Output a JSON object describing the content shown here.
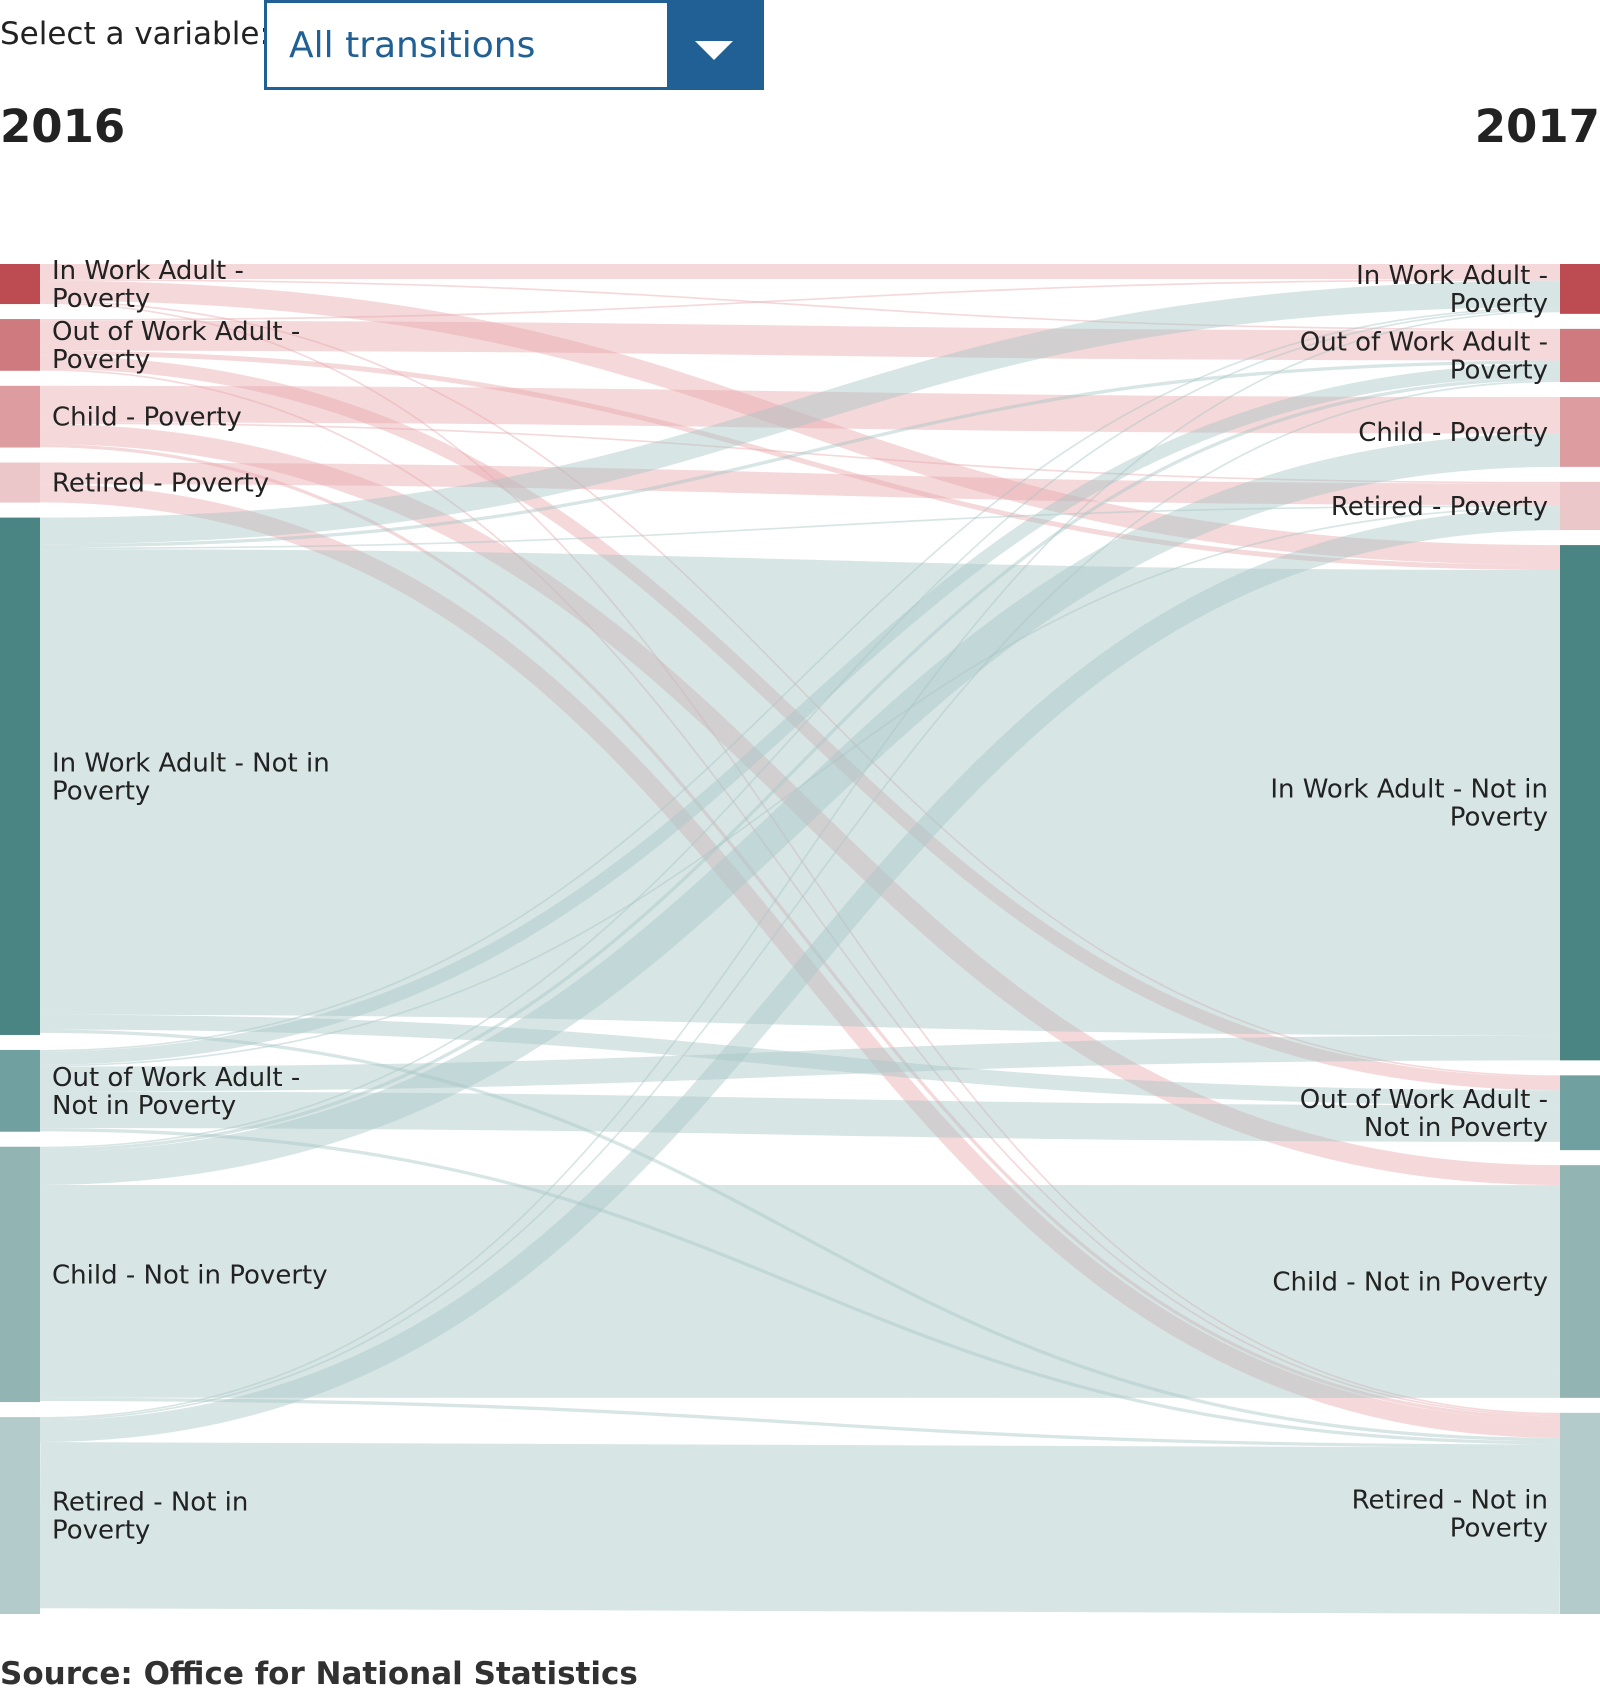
{
  "control": {
    "label": "Select a variable:",
    "selected": "All transitions"
  },
  "years": {
    "left": "2016",
    "right": "2017"
  },
  "colors": {
    "in_work_poverty": "#bd4c52",
    "out_of_work_poverty": "#cf7a7e",
    "child_poverty": "#dc9ca0",
    "retired_poverty": "#ebc7c9",
    "in_work_not_poverty": "#4a8584",
    "out_of_work_not_poverty": "#70a09f",
    "child_not_poverty": "#92b5b4",
    "retired_not_poverty": "#b3cccb",
    "flow_poverty": "#e8a9ad",
    "flow_not_poverty": "#a9c6c6"
  },
  "chart_data": {
    "type": "sankey",
    "title": "",
    "nodes": [
      {
        "name": "In Work Adult - Poverty",
        "group": "poverty"
      },
      {
        "name": "Out of Work Adult - Poverty",
        "group": "poverty"
      },
      {
        "name": "Child - Poverty",
        "group": "poverty"
      },
      {
        "name": "Retired - Poverty",
        "group": "poverty"
      },
      {
        "name": "In Work Adult - Not in Poverty",
        "group": "not_poverty"
      },
      {
        "name": "Out of Work Adult - Not in Poverty",
        "group": "not_poverty"
      },
      {
        "name": "Child - Not in Poverty",
        "group": "not_poverty"
      },
      {
        "name": "Retired - Not in Poverty",
        "group": "not_poverty"
      }
    ],
    "totals_2016": [
      2.4,
      3.1,
      3.7,
      2.4,
      31.0,
      4.9,
      15.3,
      11.8
    ],
    "totals_2017": [
      3.0,
      3.2,
      4.2,
      2.9,
      31.0,
      4.5,
      14.0,
      12.1
    ],
    "flows": [
      {
        "from": 0,
        "to": 0,
        "value": 0.9
      },
      {
        "from": 0,
        "to": 1,
        "value": 0.1
      },
      {
        "from": 0,
        "to": 4,
        "value": 1.2
      },
      {
        "from": 0,
        "to": 5,
        "value": 0.1
      },
      {
        "from": 0,
        "to": 7,
        "value": 0.1
      },
      {
        "from": 1,
        "to": 0,
        "value": 0.1
      },
      {
        "from": 1,
        "to": 1,
        "value": 1.8
      },
      {
        "from": 1,
        "to": 4,
        "value": 0.3
      },
      {
        "from": 1,
        "to": 5,
        "value": 0.8
      },
      {
        "from": 1,
        "to": 7,
        "value": 0.1
      },
      {
        "from": 2,
        "to": 2,
        "value": 2.2
      },
      {
        "from": 2,
        "to": 3,
        "value": 0.1
      },
      {
        "from": 2,
        "to": 6,
        "value": 1.2
      },
      {
        "from": 2,
        "to": 7,
        "value": 0.2
      },
      {
        "from": 3,
        "to": 3,
        "value": 1.3
      },
      {
        "from": 3,
        "to": 7,
        "value": 1.1
      },
      {
        "from": 4,
        "to": 0,
        "value": 1.6
      },
      {
        "from": 4,
        "to": 1,
        "value": 0.2
      },
      {
        "from": 4,
        "to": 3,
        "value": 0.1
      },
      {
        "from": 4,
        "to": 4,
        "value": 28.0
      },
      {
        "from": 4,
        "to": 5,
        "value": 0.9
      },
      {
        "from": 4,
        "to": 7,
        "value": 0.2
      },
      {
        "from": 5,
        "to": 0,
        "value": 0.1
      },
      {
        "from": 5,
        "to": 1,
        "value": 0.8
      },
      {
        "from": 5,
        "to": 3,
        "value": 0.1
      },
      {
        "from": 5,
        "to": 4,
        "value": 1.5
      },
      {
        "from": 5,
        "to": 5,
        "value": 2.2
      },
      {
        "from": 5,
        "to": 7,
        "value": 0.2
      },
      {
        "from": 6,
        "to": 0,
        "value": 0.1
      },
      {
        "from": 6,
        "to": 1,
        "value": 0.2
      },
      {
        "from": 6,
        "to": 2,
        "value": 2.0
      },
      {
        "from": 6,
        "to": 6,
        "value": 12.8
      },
      {
        "from": 6,
        "to": 7,
        "value": 0.2
      },
      {
        "from": 7,
        "to": 0,
        "value": 0.1
      },
      {
        "from": 7,
        "to": 1,
        "value": 0.1
      },
      {
        "from": 7,
        "to": 3,
        "value": 1.3
      },
      {
        "from": 7,
        "to": 7,
        "value": 10.0
      }
    ],
    "legend": "none"
  },
  "source": "Source: Office for National Statistics"
}
